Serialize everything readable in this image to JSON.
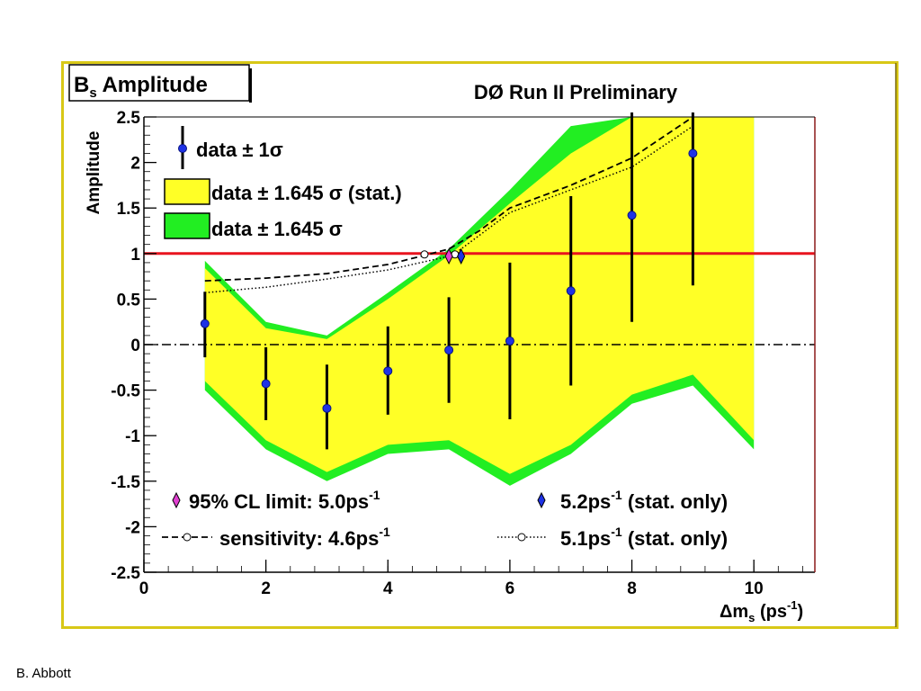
{
  "footer": {
    "author": "B. Abbott"
  },
  "chart_data": {
    "type": "line",
    "title": "B_s Amplitude",
    "title_main": "B",
    "title_sub": "s",
    "title_rest": " Amplitude",
    "subtitle": "DØ Run II Preliminary",
    "ylabel": "Amplitude",
    "xlabel": "Δm_s (ps^-1)",
    "xlabel_main": "Δm",
    "xlabel_sub": "s",
    "xlabel_unit": " (ps",
    "xlabel_sup": "-1",
    "xlabel_close": ")",
    "xlim": [
      0,
      11
    ],
    "ylim": [
      -2.5,
      2.5
    ],
    "x_ticks": [
      0,
      2,
      4,
      6,
      8,
      10
    ],
    "y_ticks": [
      2.5,
      2,
      1.5,
      1,
      0.5,
      0,
      -0.5,
      -1,
      -1.5,
      -2,
      -2.5
    ],
    "reference_lines": [
      {
        "name": "amplitude = 1",
        "y": 1,
        "color": "#e8141e"
      },
      {
        "name": "amplitude = 0",
        "y": 0,
        "color": "#000000"
      }
    ],
    "data_points": {
      "x": [
        1,
        2,
        3,
        4,
        5,
        6,
        7,
        8,
        9
      ],
      "y": [
        0.23,
        -0.43,
        -0.7,
        -0.29,
        -0.06,
        0.04,
        0.59,
        1.42,
        2.1
      ],
      "err_low": [
        -0.14,
        -0.83,
        -1.15,
        -0.77,
        -0.64,
        -0.82,
        -0.45,
        0.25,
        0.65
      ],
      "err_high": [
        0.58,
        -0.03,
        -0.22,
        0.2,
        0.52,
        0.9,
        1.63,
        2.55,
        2.55
      ]
    },
    "band_stat": {
      "color": "#ffff26",
      "x": [
        1,
        2,
        3,
        4,
        5,
        6,
        7,
        8,
        9,
        10
      ],
      "upper": [
        0.84,
        0.18,
        0.06,
        0.5,
        0.98,
        1.55,
        2.1,
        2.5,
        2.5,
        2.5
      ],
      "lower": [
        -0.4,
        -1.05,
        -1.4,
        -1.1,
        -1.05,
        -1.42,
        -1.1,
        -0.55,
        -0.33,
        -1.05
      ]
    },
    "band_total": {
      "color": "#22ee22",
      "x": [
        1,
        2,
        3,
        4,
        5,
        6,
        7,
        8,
        9,
        10
      ],
      "upper": [
        0.92,
        0.25,
        0.1,
        0.57,
        1.05,
        1.7,
        2.4,
        2.5,
        2.5,
        2.5
      ],
      "lower": [
        -0.5,
        -1.15,
        -1.5,
        -1.2,
        -1.15,
        -1.55,
        -1.2,
        -0.65,
        -0.45,
        -1.15
      ]
    },
    "sensitivity_dashed": {
      "x": [
        1,
        2,
        3,
        4,
        4.6,
        5,
        5.5,
        6,
        7,
        8,
        9
      ],
      "y": [
        0.7,
        0.73,
        0.78,
        0.88,
        0.98,
        1.05,
        1.25,
        1.5,
        1.75,
        2.05,
        2.55
      ]
    },
    "sensitivity_dotted": {
      "x": [
        1,
        2,
        3,
        4,
        5,
        5.1,
        6,
        7,
        8,
        9
      ],
      "y": [
        0.57,
        0.63,
        0.72,
        0.82,
        0.97,
        1.0,
        1.45,
        1.7,
        1.95,
        2.4
      ]
    },
    "limit_marker": {
      "x": 5.0,
      "y": 0.97
    },
    "stat_only_marker": {
      "x": 5.2,
      "y": 0.97
    },
    "sensitivity_marker": {
      "x": 4.6,
      "y": 0.99
    },
    "dotted_marker": {
      "x": 5.1,
      "y": 0.99
    },
    "legend": {
      "placement": "top-left",
      "items": [
        {
          "label": "data ± 1σ",
          "type": "errorbar"
        },
        {
          "label": "data ± 1.645 σ (stat.)",
          "type": "band",
          "color": "#ffff26"
        },
        {
          "label": "data ± 1.645 σ",
          "type": "band",
          "color": "#22ee22"
        }
      ]
    },
    "legend_bottom": {
      "placement": "bottom",
      "items": [
        {
          "label_main": "95% CL limit: 5.0ps",
          "sup": "-1",
          "tail": ""
        },
        {
          "label_main": "5.2ps",
          "sup": "-1",
          "tail": " (stat. only)"
        },
        {
          "label_main": "sensitivity: 4.6ps",
          "sup": "-1",
          "tail": ""
        },
        {
          "label_main": "5.1ps",
          "sup": "-1",
          "tail": " (stat. only)"
        }
      ]
    }
  }
}
